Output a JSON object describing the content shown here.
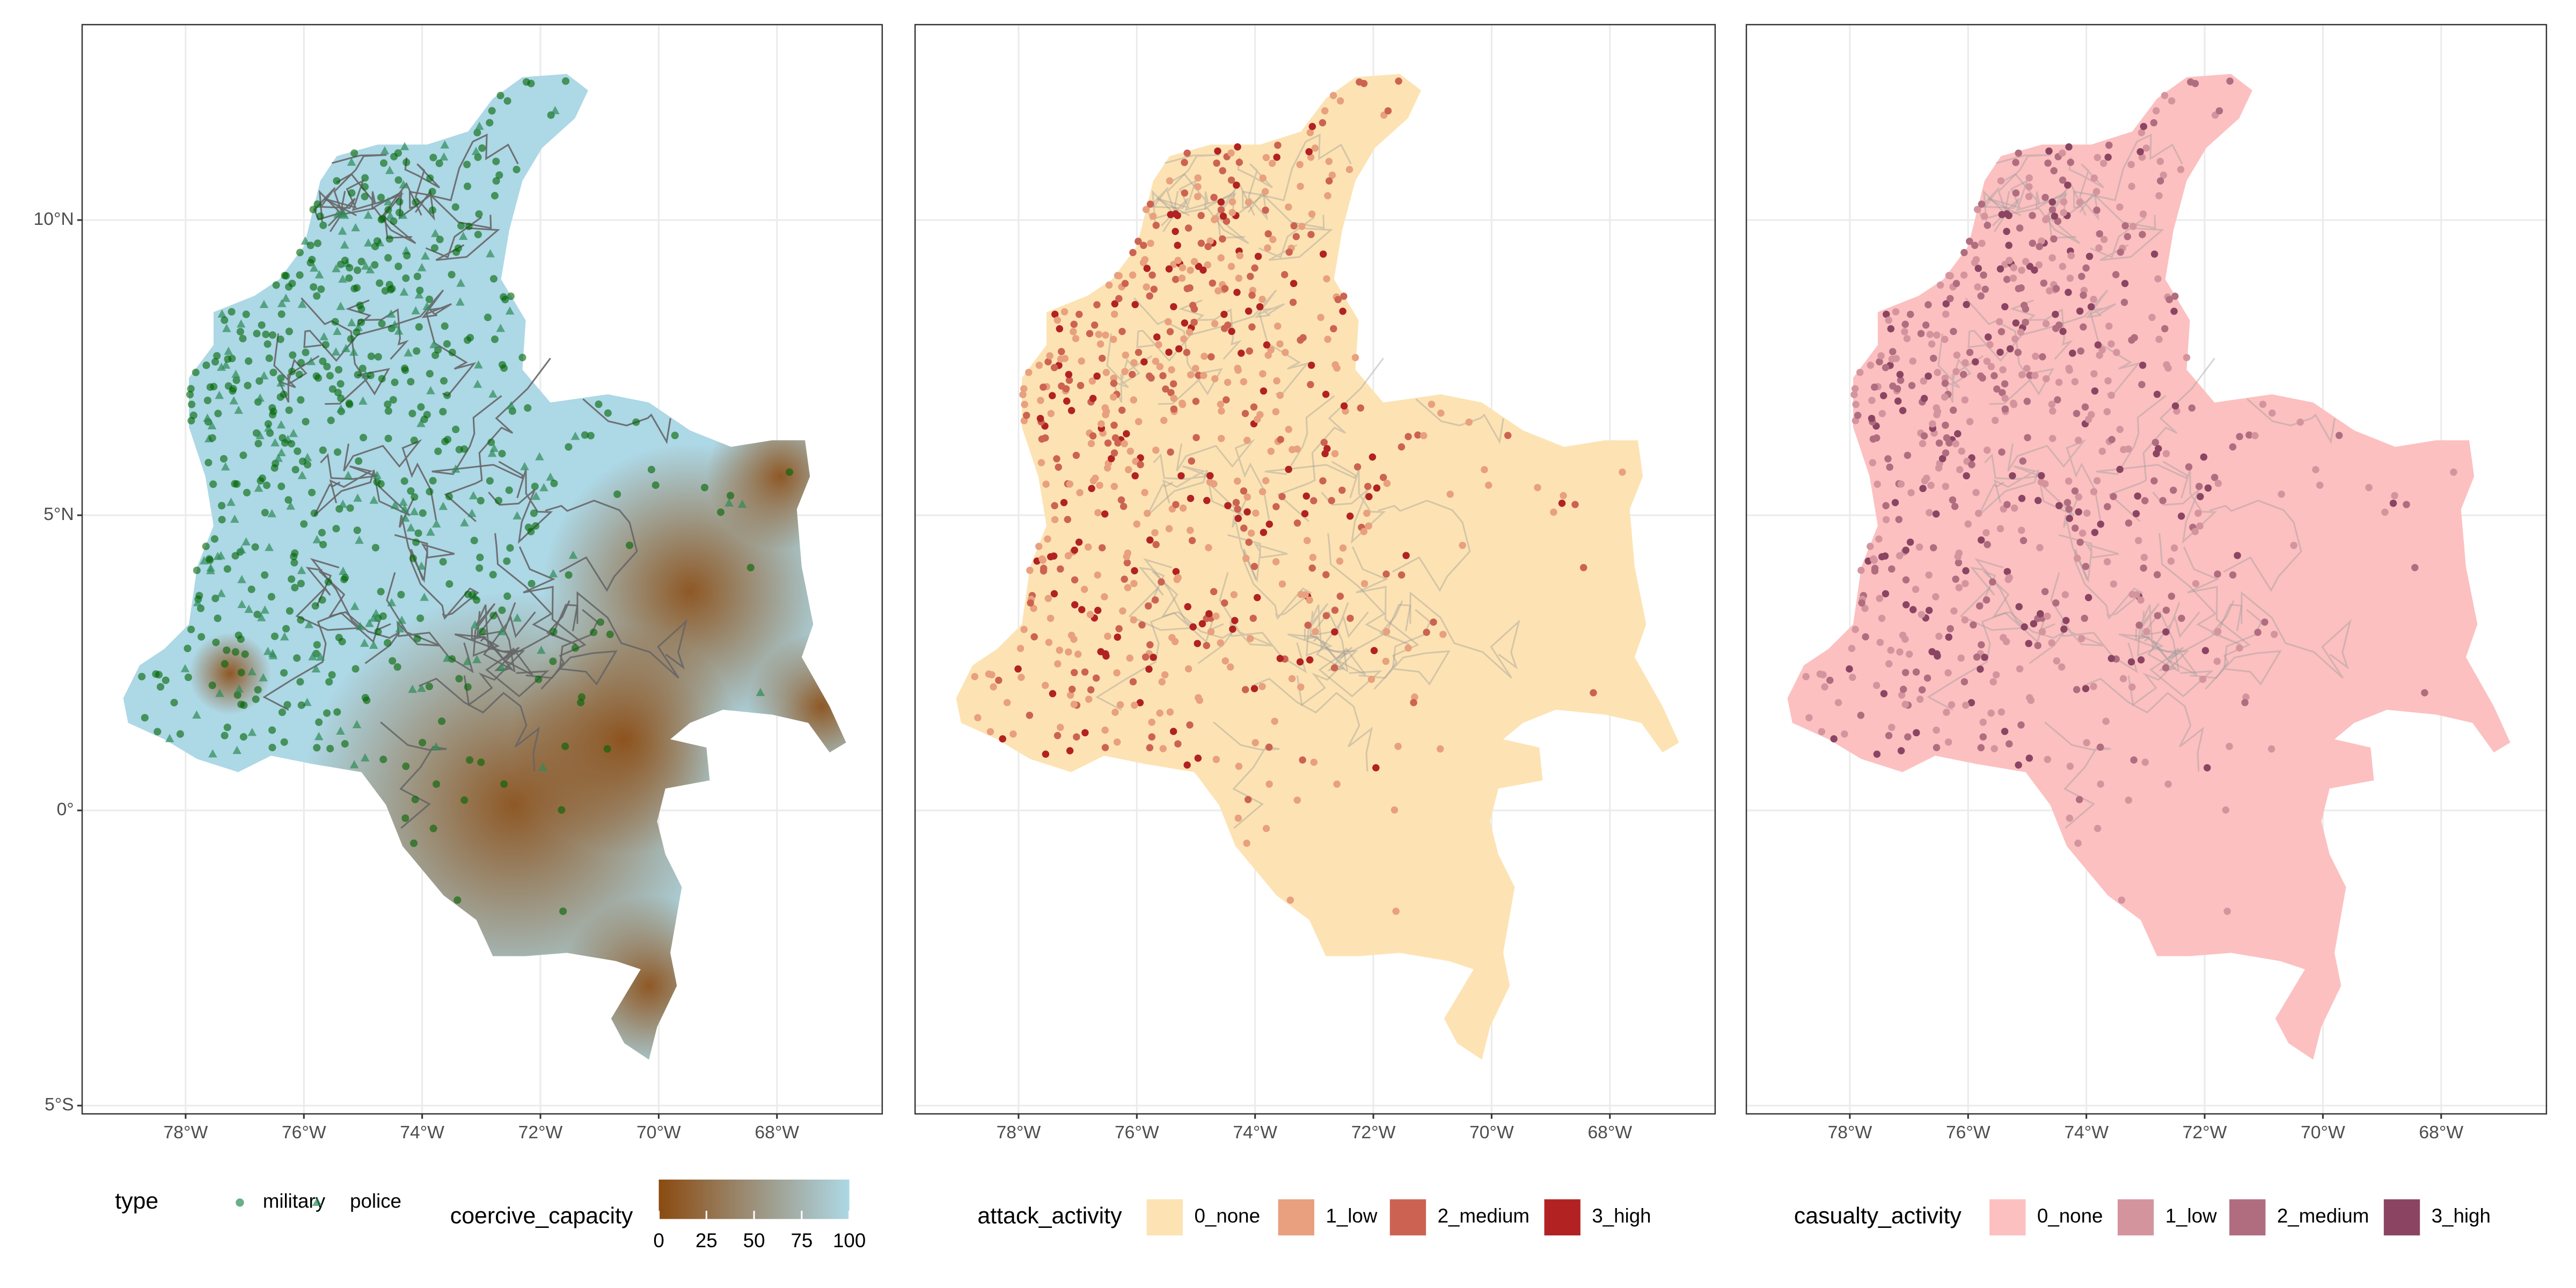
{
  "xlim": [
    -79.75,
    -66.22
  ],
  "ylim": [
    -5.14,
    13.31
  ],
  "lon_ticks": [
    {
      "value": -78,
      "label": "78°W"
    },
    {
      "value": -76,
      "label": "76°W"
    },
    {
      "value": -74,
      "label": "74°W"
    },
    {
      "value": -72,
      "label": "72°W"
    },
    {
      "value": -70,
      "label": "70°W"
    },
    {
      "value": -68,
      "label": "68°W"
    }
  ],
  "lat_ticks": [
    {
      "value": 10,
      "label": "10°N"
    },
    {
      "value": 5,
      "label": "5°N"
    },
    {
      "value": 0,
      "label": "0°"
    },
    {
      "value": -5,
      "label": "5°S"
    }
  ],
  "panels": [
    {
      "legend": {
        "title": "type",
        "items": [
          {
            "name": "military",
            "color": "#2e8b57"
          },
          {
            "name": "police",
            "color": "#2e8b57"
          }
        ]
      },
      "colorbar": {
        "title": "coercive_capacity",
        "lim": [
          0,
          100
        ],
        "ticks": [
          0,
          25,
          50,
          75,
          100
        ],
        "low": "#8b4a10",
        "high": "#add8e6"
      }
    },
    {
      "legend": {
        "title": "attack_activity",
        "items": [
          {
            "name": "0_none",
            "color": "#fde3b3"
          },
          {
            "name": "1_low",
            "color": "#e8a07e"
          },
          {
            "name": "2_medium",
            "color": "#cc6352"
          },
          {
            "name": "3_high",
            "color": "#b22222"
          }
        ]
      }
    },
    {
      "legend": {
        "title": "casualty_activity",
        "items": [
          {
            "name": "0_none",
            "color": "#fcc0c0"
          },
          {
            "name": "1_low",
            "color": "#d4949e"
          },
          {
            "name": "2_medium",
            "color": "#b06d80"
          },
          {
            "name": "3_high",
            "color": "#8b4563"
          }
        ]
      }
    }
  ]
}
